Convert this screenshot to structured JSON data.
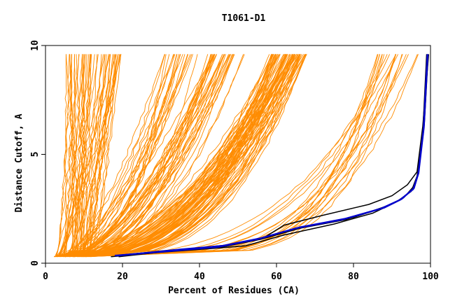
{
  "chart_data": {
    "type": "line",
    "title": "T1061-D1",
    "xlabel": "Percent of Residues (CA)",
    "ylabel": "Distance Cutoff, A",
    "xlim": [
      0,
      100
    ],
    "ylim": [
      0,
      10
    ],
    "x_ticks": [
      {
        "value": 0,
        "label": "0"
      },
      {
        "value": 20,
        "label": "20"
      },
      {
        "value": 40,
        "label": "40"
      },
      {
        "value": 60,
        "label": "60"
      },
      {
        "value": 80,
        "label": "80"
      },
      {
        "value": 100,
        "label": "100"
      }
    ],
    "y_ticks": [
      {
        "value": 0,
        "label": "0"
      },
      {
        "value": 5,
        "label": "5"
      },
      {
        "value": 10,
        "label": "10"
      }
    ],
    "grid": false,
    "legend": "none",
    "colors": {
      "other_models": "#ff8c00",
      "top_models": "#000000",
      "highlight_model": "#0000cc"
    },
    "series": [
      {
        "group": "black",
        "x": [
          17,
          30,
          45,
          52,
          62,
          75,
          85,
          91,
          95,
          96.5,
          98,
          99
        ],
        "y": [
          0.3,
          0.5,
          0.7,
          0.8,
          1.3,
          1.8,
          2.3,
          2.8,
          3.3,
          4.0,
          6.0,
          9.6
        ]
      },
      {
        "group": "black",
        "x": [
          18,
          33,
          47,
          57,
          62,
          72,
          84,
          90,
          94,
          96.5,
          98,
          99.5
        ],
        "y": [
          0.35,
          0.6,
          0.8,
          1.2,
          1.75,
          2.2,
          2.7,
          3.1,
          3.6,
          4.2,
          6.3,
          9.6
        ]
      },
      {
        "group": "black",
        "x": [
          19,
          32,
          46,
          56,
          66,
          78,
          87,
          92,
          95.5,
          96.8,
          98.2,
          99.2
        ],
        "y": [
          0.3,
          0.55,
          0.75,
          1.1,
          1.6,
          2.0,
          2.5,
          2.9,
          3.4,
          4.1,
          6.2,
          9.6
        ]
      },
      {
        "group": "black",
        "x": [
          20,
          34,
          48,
          58,
          68,
          80,
          89,
          93,
          96,
          97,
          98.4,
          99.4
        ],
        "y": [
          0.35,
          0.6,
          0.85,
          1.2,
          1.7,
          2.1,
          2.65,
          3.0,
          3.6,
          4.3,
          6.4,
          9.6
        ]
      },
      {
        "group": "blue",
        "x": [
          18,
          32,
          45,
          55,
          65,
          77,
          87,
          92,
          95.5,
          96.8,
          98.2,
          99.2
        ],
        "y": [
          0.35,
          0.55,
          0.75,
          1.1,
          1.6,
          2.0,
          2.5,
          2.9,
          3.4,
          4.1,
          6.2,
          9.6
        ]
      },
      {
        "group": "blue",
        "x": [
          19,
          33,
          46,
          56,
          66,
          78,
          88,
          92.5,
          95.7,
          96.9,
          98.3,
          99.3
        ],
        "y": [
          0.35,
          0.6,
          0.8,
          1.15,
          1.65,
          2.05,
          2.55,
          2.95,
          3.45,
          4.15,
          6.25,
          9.6
        ]
      }
    ]
  }
}
